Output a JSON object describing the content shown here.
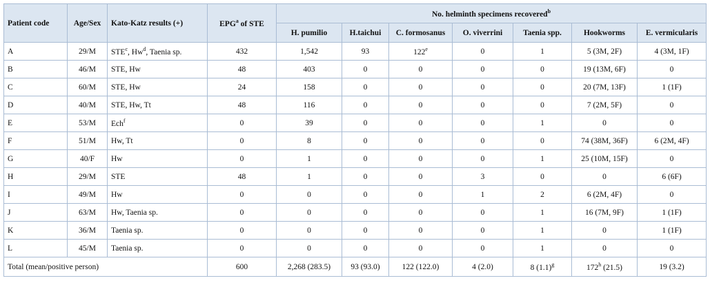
{
  "table": {
    "header": {
      "top": [
        "Patient code",
        "Age/Sex",
        "Kato-Katz results (+)",
        [
          "EPG",
          {
            "sup": "a"
          },
          " of STE"
        ],
        [
          "No. helminth specimens recovered",
          {
            "sup": "b"
          }
        ]
      ],
      "sub": [
        "H. pumilio",
        "H.taichui",
        "C. formosanus",
        "O. viverrini",
        "Taenia spp.",
        "Hookworms",
        "E. vermicularis"
      ]
    },
    "rows": [
      [
        "A",
        "29/M",
        [
          "STE",
          {
            "sup": "c"
          },
          ", Hw",
          {
            "sup": "d"
          },
          ", Taenia sp."
        ],
        "432",
        "1,542",
        "93",
        [
          "122",
          {
            "sup": "e"
          }
        ],
        "0",
        "1",
        "5 (3M, 2F)",
        "4 (3M, 1F)"
      ],
      [
        "B",
        "46/M",
        "STE, Hw",
        "48",
        "403",
        "0",
        "0",
        "0",
        "0",
        "19 (13M, 6F)",
        "0"
      ],
      [
        "C",
        "60/M",
        "STE, Hw",
        "24",
        "158",
        "0",
        "0",
        "0",
        "0",
        "20 (7M, 13F)",
        "1 (1F)"
      ],
      [
        "D",
        "40/M",
        "STE, Hw, Tt",
        "48",
        "116",
        "0",
        "0",
        "0",
        "0",
        "7 (2M, 5F)",
        "0"
      ],
      [
        "E",
        "53/M",
        [
          "Ech",
          {
            "sup": "f"
          }
        ],
        "0",
        "39",
        "0",
        "0",
        "0",
        "1",
        "0",
        "0"
      ],
      [
        "F",
        "51/M",
        "Hw, Tt",
        "0",
        "8",
        "0",
        "0",
        "0",
        "0",
        "74 (38M, 36F)",
        "6 (2M, 4F)"
      ],
      [
        "G",
        "40/F",
        "Hw",
        "0",
        "1",
        "0",
        "0",
        "0",
        "1",
        "25 (10M, 15F)",
        "0"
      ],
      [
        "H",
        "29/M",
        "STE",
        "48",
        "1",
        "0",
        "0",
        "3",
        "0",
        "0",
        "6 (6F)"
      ],
      [
        "I",
        "49/M",
        "Hw",
        "0",
        "0",
        "0",
        "0",
        "1",
        "2",
        "6 (2M, 4F)",
        "0"
      ],
      [
        "J",
        "63/M",
        "Hw, Taenia sp.",
        "0",
        "0",
        "0",
        "0",
        "0",
        "1",
        "16 (7M, 9F)",
        "1 (1F)"
      ],
      [
        "K",
        "36/M",
        "Taenia sp.",
        "0",
        "0",
        "0",
        "0",
        "0",
        "1",
        "0",
        "1 (1F)"
      ],
      [
        "L",
        "45/M",
        "Taenia sp.",
        "0",
        "0",
        "0",
        "0",
        "0",
        "1",
        "0",
        "0"
      ]
    ],
    "total": [
      "Total (mean/positive person)",
      "600",
      "2,268 (283.5)",
      "93 (93.0)",
      "122 (122.0)",
      "4 (2.0)",
      [
        "8 (1.1)",
        {
          "sup": "g"
        }
      ],
      [
        "172",
        {
          "sup": "h"
        },
        " (21.5)"
      ],
      "19 (3.2)"
    ]
  }
}
